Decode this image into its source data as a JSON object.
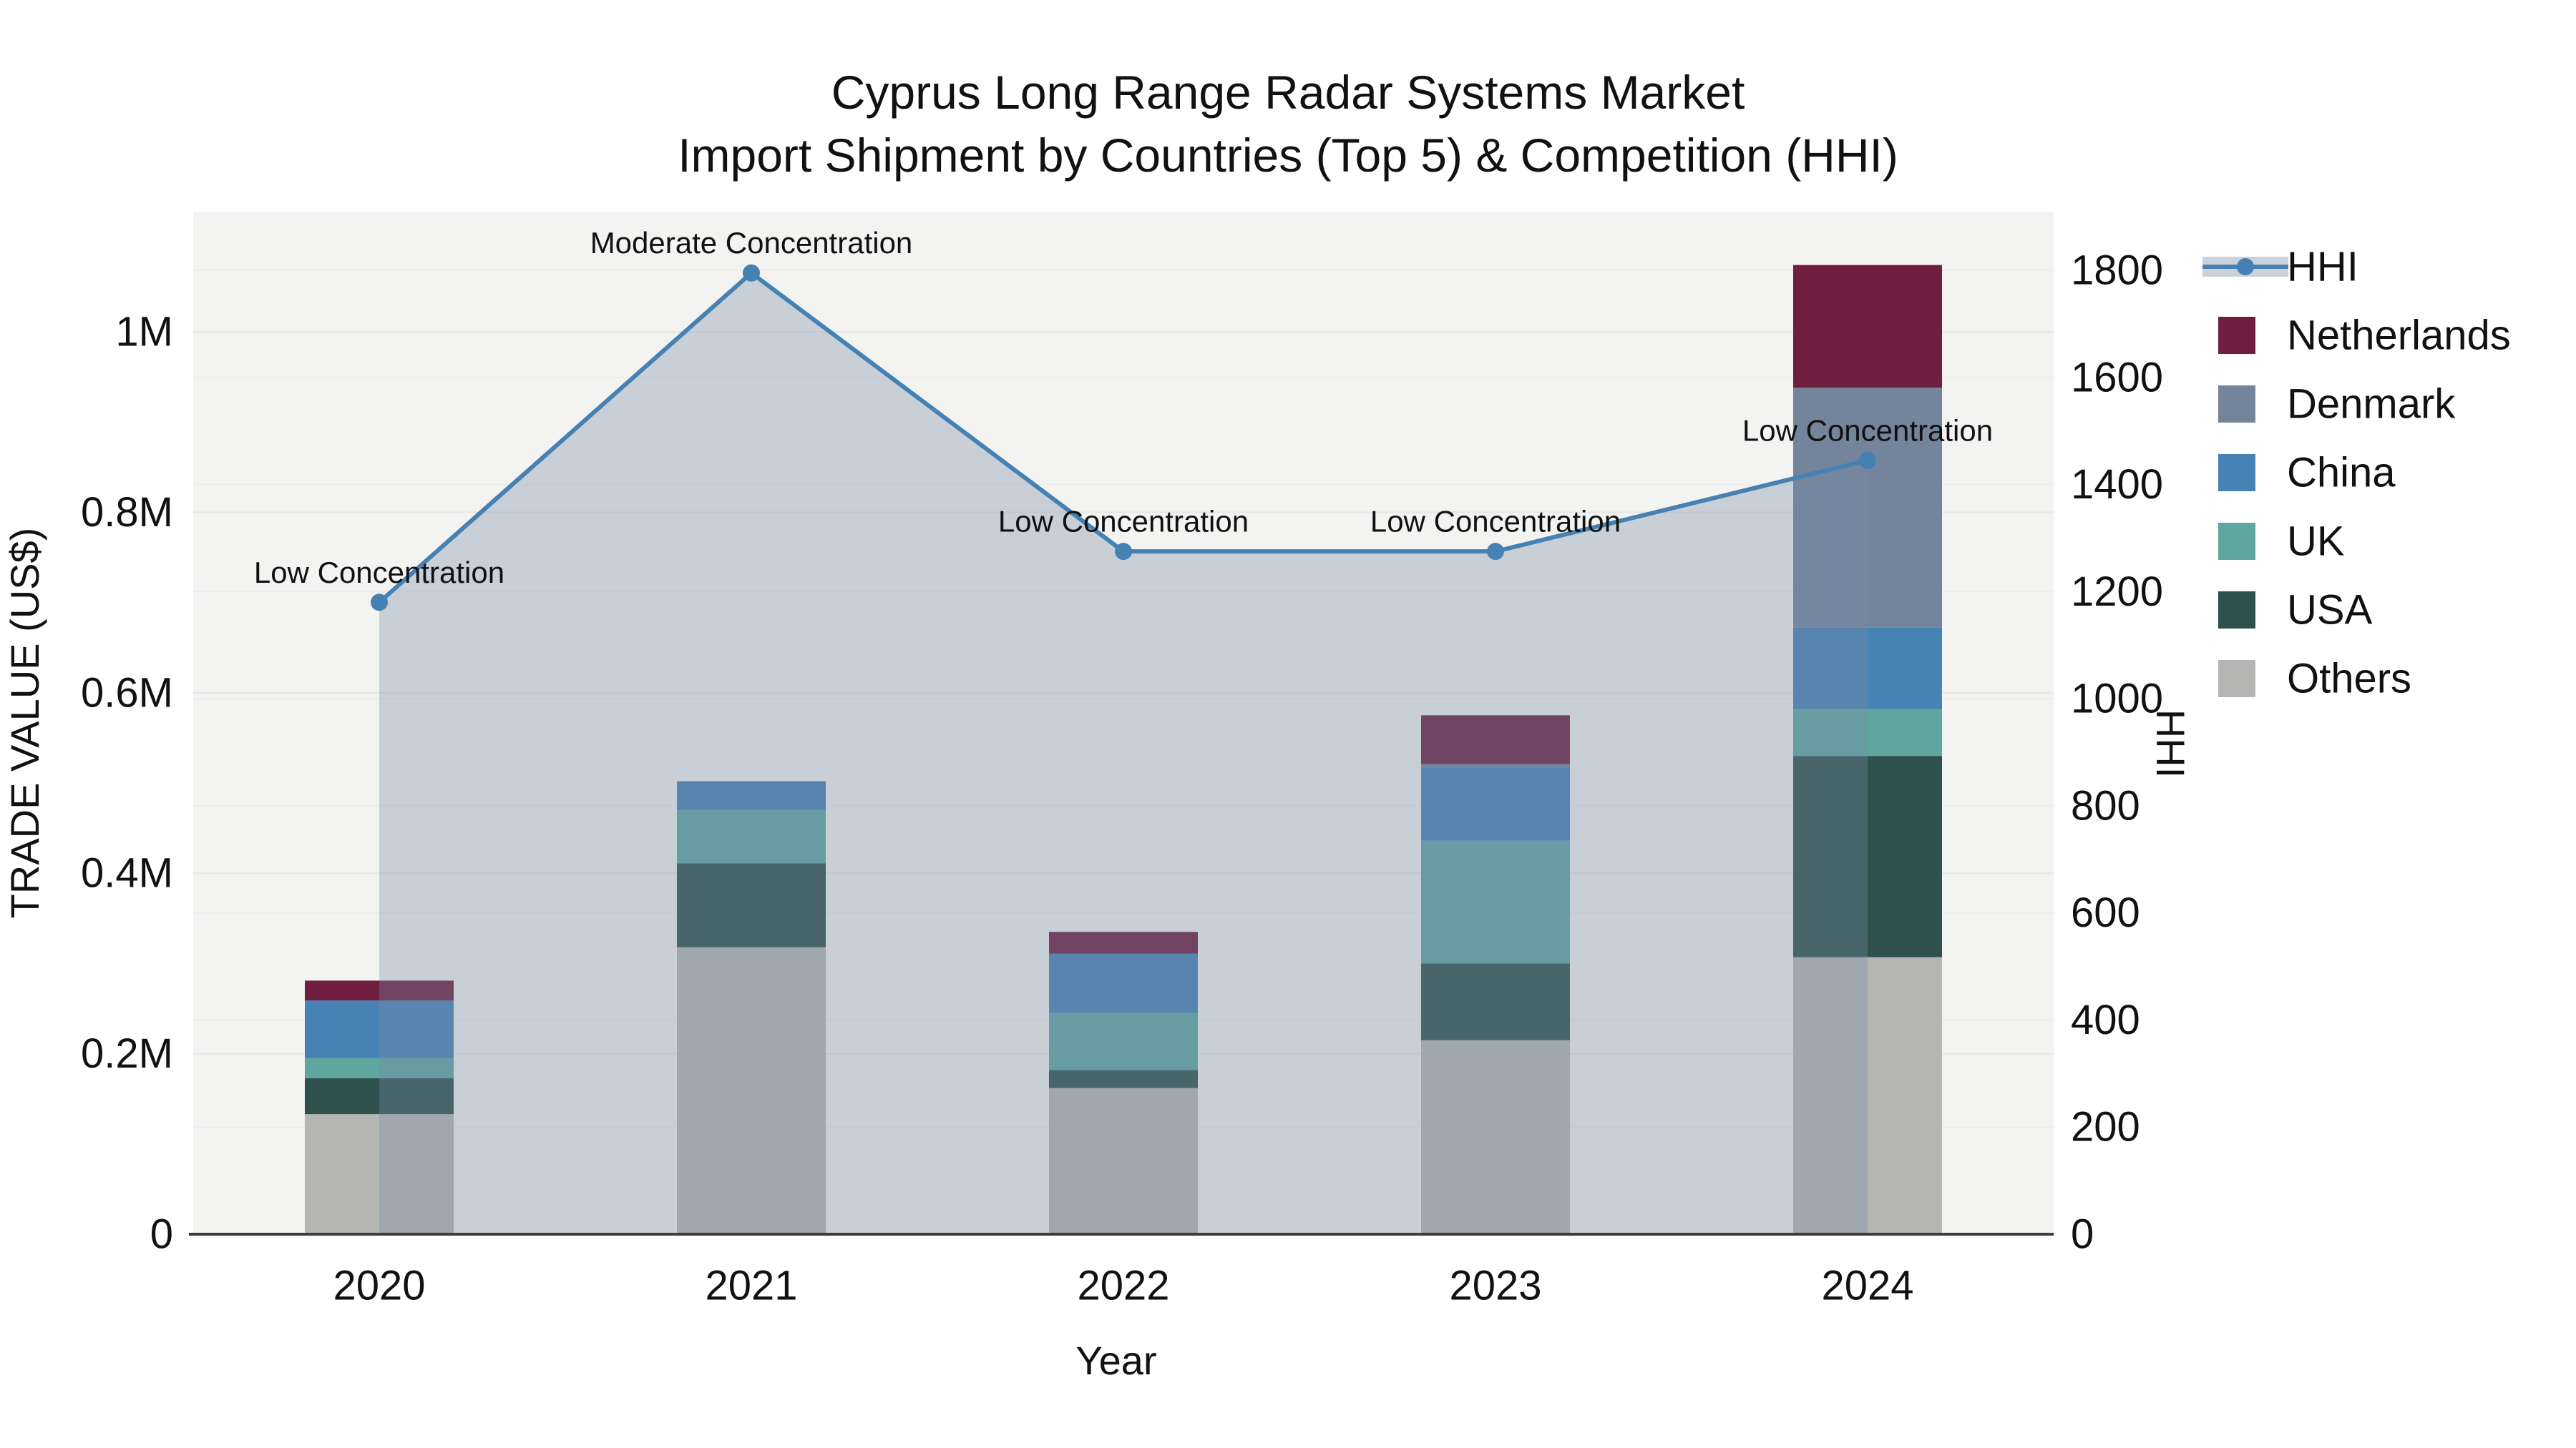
{
  "title": {
    "line1": "Cyprus Long Range Radar Systems Market",
    "line2": "Import Shipment by Countries (Top 5) & Competition (HHI)"
  },
  "chart_data": {
    "type": "combo-stacked-bar-line",
    "categories": [
      "2020",
      "2021",
      "2022",
      "2023",
      "2024"
    ],
    "series": [
      {
        "name": "Others",
        "type": "bar",
        "color": "#b5b6b4",
        "values": [
          133000,
          318000,
          162000,
          215000,
          307000
        ]
      },
      {
        "name": "USA",
        "type": "bar",
        "color": "#2e514d",
        "values": [
          40000,
          93000,
          20000,
          85000,
          223000
        ]
      },
      {
        "name": "UK",
        "type": "bar",
        "color": "#5fa5a0",
        "values": [
          22000,
          59000,
          63000,
          136000,
          52000
        ]
      },
      {
        "name": "China",
        "type": "bar",
        "color": "#4682b4",
        "values": [
          64000,
          32000,
          66000,
          81000,
          90000
        ]
      },
      {
        "name": "Denmark",
        "type": "bar",
        "color": "#74859b",
        "values": [
          0,
          0,
          0,
          4000,
          266000
        ]
      },
      {
        "name": "Netherlands",
        "type": "bar",
        "color": "#6f1e3f",
        "values": [
          22000,
          0,
          24000,
          54000,
          136000
        ]
      }
    ],
    "line": {
      "name": "HHI",
      "color": "#4681b4",
      "area_fill": "rgba(120,140,165,0.35)",
      "values": [
        1180,
        1795,
        1275,
        1275,
        1445
      ],
      "annotations": [
        "Low Concentration",
        "Moderate Concentration",
        "Low Concentration",
        "Low Concentration",
        "Low Concentration"
      ]
    },
    "x_axis": {
      "title": "Year",
      "tick_labels": [
        "2020",
        "2021",
        "2022",
        "2023",
        "2024"
      ]
    },
    "y_left": {
      "title": "TRADE VALUE (US$)",
      "tick_labels": [
        "0",
        "0.2M",
        "0.4M",
        "0.6M",
        "0.8M",
        "1M"
      ],
      "tick_values": [
        0,
        200000,
        400000,
        600000,
        800000,
        1000000
      ],
      "range": [
        0,
        1133000
      ],
      "grid": true
    },
    "y_right": {
      "title": "HHI",
      "tick_labels": [
        "0",
        "200",
        "400",
        "600",
        "800",
        "1000",
        "1200",
        "1400",
        "1600",
        "1800"
      ],
      "tick_values": [
        0,
        200,
        400,
        600,
        800,
        1000,
        1200,
        1400,
        1600,
        1800
      ],
      "range": [
        0,
        1909
      ],
      "grid": true
    },
    "legend": [
      "HHI",
      "Netherlands",
      "Denmark",
      "China",
      "UK",
      "USA",
      "Others"
    ],
    "legend_position": "right",
    "plot_background": "#f3f3f2",
    "grid_color": "#e5e7e5",
    "axis_line_color": "#3c3c3c"
  }
}
